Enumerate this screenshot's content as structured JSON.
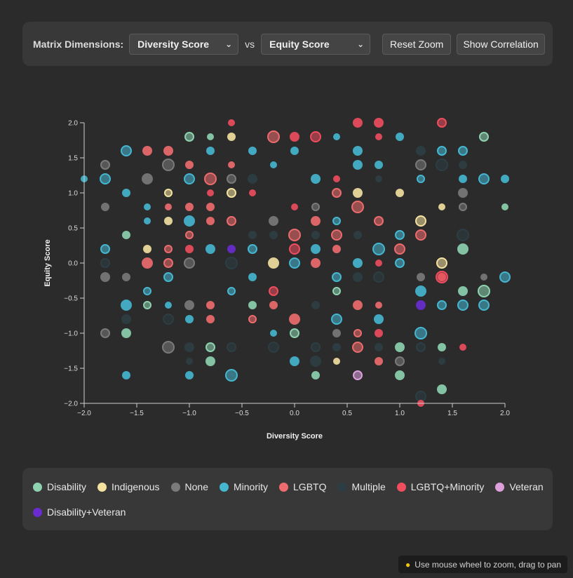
{
  "controls": {
    "label": "Matrix Dimensions:",
    "x_select": "Diversity Score",
    "vs": "vs",
    "y_select": "Equity Score",
    "reset_label": "Reset Zoom",
    "correlation_label": "Show Correlation"
  },
  "hint": {
    "icon": "bulb-icon",
    "text": "Use mouse wheel to zoom, drag to pan"
  },
  "legend": [
    {
      "label": "Disability",
      "color": "#8dd3b0"
    },
    {
      "label": "Indigenous",
      "color": "#f5e2a1"
    },
    {
      "label": "None",
      "color": "#7a7a7a"
    },
    {
      "label": "Minority",
      "color": "#45b7d1"
    },
    {
      "label": "LGBTQ",
      "color": "#ee6b6e"
    },
    {
      "label": "Multiple",
      "color": "#2c3e44"
    },
    {
      "label": "LGBTQ+Minority",
      "color": "#f04d5e"
    },
    {
      "label": "Veteran",
      "color": "#dda0dd"
    },
    {
      "label": "Disability+Veteran",
      "color": "#6a2bd0"
    }
  ],
  "chart_data": {
    "type": "scatter",
    "xlabel": "Diversity Score",
    "ylabel": "Equity Score",
    "xlim": [
      -2,
      2
    ],
    "ylim": [
      -2,
      2
    ],
    "xticks": [
      "−2.0",
      "−1.5",
      "−1.0",
      "−0.5",
      "0.0",
      "0.5",
      "1.0",
      "1.5",
      "2.0"
    ],
    "yticks": [
      "−2.0",
      "−1.5",
      "−1.0",
      "−0.5",
      "0.0",
      "0.5",
      "1.0",
      "1.5",
      "2.0"
    ],
    "series": [
      {
        "name": "Disability",
        "color": "#8dd3b0",
        "points": [
          [
            -1.0,
            1.8
          ],
          [
            -0.8,
            1.8
          ],
          [
            -1.6,
            0.4
          ],
          [
            -1.4,
            -0.6
          ],
          [
            -1.6,
            -1.0
          ],
          [
            -0.8,
            -1.2
          ],
          [
            -0.8,
            -1.4
          ],
          [
            0.2,
            -1.6
          ],
          [
            1.4,
            -1.8
          ],
          [
            1.0,
            -1.6
          ],
          [
            1.4,
            -1.2
          ],
          [
            1.8,
            -0.4
          ],
          [
            2.0,
            0.8
          ],
          [
            1.6,
            0.2
          ],
          [
            0.0,
            -1.0
          ],
          [
            1.6,
            -0.4
          ],
          [
            1.8,
            1.8
          ],
          [
            -0.4,
            -0.6
          ],
          [
            1.0,
            -1.2
          ],
          [
            0.4,
            -0.4
          ]
        ]
      },
      {
        "name": "Indigenous",
        "color": "#f5e2a1",
        "points": [
          [
            -0.6,
            1.8
          ],
          [
            -1.2,
            1.0
          ],
          [
            -0.6,
            1.0
          ],
          [
            1.0,
            1.0
          ],
          [
            0.6,
            1.0
          ],
          [
            1.2,
            0.6
          ],
          [
            1.4,
            0.8
          ],
          [
            -1.2,
            0.6
          ],
          [
            0.4,
            -1.4
          ],
          [
            1.4,
            0.0
          ],
          [
            -0.2,
            0.0
          ],
          [
            -1.4,
            0.2
          ]
        ]
      },
      {
        "name": "None",
        "color": "#7a7a7a",
        "points": [
          [
            -1.8,
            1.4
          ],
          [
            -1.8,
            0.8
          ],
          [
            -1.6,
            -0.2
          ],
          [
            -1.8,
            -0.2
          ],
          [
            -1.8,
            -1.0
          ],
          [
            -1.2,
            1.4
          ],
          [
            -1.2,
            -1.2
          ],
          [
            -1.0,
            0.0
          ],
          [
            -1.0,
            -0.6
          ],
          [
            0.4,
            -1.0
          ],
          [
            1.2,
            -0.2
          ],
          [
            1.2,
            1.4
          ],
          [
            1.0,
            -1.4
          ],
          [
            1.8,
            -0.2
          ],
          [
            1.6,
            1.0
          ],
          [
            1.6,
            0.8
          ],
          [
            -0.6,
            1.2
          ],
          [
            -0.2,
            0.6
          ],
          [
            0.2,
            0.8
          ],
          [
            -1.4,
            1.2
          ]
        ]
      },
      {
        "name": "Minority",
        "color": "#45b7d1",
        "points": [
          [
            -2.0,
            1.2
          ],
          [
            -1.8,
            1.2
          ],
          [
            -1.6,
            1.6
          ],
          [
            -1.8,
            0.2
          ],
          [
            -1.6,
            1.0
          ],
          [
            -1.4,
            0.8
          ],
          [
            -1.0,
            1.2
          ],
          [
            -1.0,
            0.6
          ],
          [
            -0.8,
            1.6
          ],
          [
            -0.4,
            1.6
          ],
          [
            -0.2,
            1.4
          ],
          [
            0.0,
            1.6
          ],
          [
            0.2,
            1.2
          ],
          [
            0.4,
            1.8
          ],
          [
            0.6,
            1.6
          ],
          [
            0.8,
            1.4
          ],
          [
            1.0,
            1.8
          ],
          [
            1.2,
            1.2
          ],
          [
            1.4,
            1.6
          ],
          [
            1.6,
            1.6
          ],
          [
            1.8,
            1.2
          ],
          [
            2.0,
            1.2
          ],
          [
            -1.4,
            -0.4
          ],
          [
            -1.2,
            -0.6
          ],
          [
            -1.0,
            -0.8
          ],
          [
            -0.6,
            -0.4
          ],
          [
            -0.4,
            -0.2
          ],
          [
            0.0,
            0.0
          ],
          [
            0.2,
            0.2
          ],
          [
            0.4,
            0.6
          ],
          [
            0.6,
            0.0
          ],
          [
            0.8,
            0.2
          ],
          [
            1.0,
            0.4
          ],
          [
            1.2,
            -0.4
          ],
          [
            1.4,
            -0.6
          ],
          [
            1.6,
            -0.6
          ],
          [
            1.8,
            -0.6
          ],
          [
            2.0,
            -0.2
          ],
          [
            -1.0,
            -1.6
          ],
          [
            -0.6,
            -1.6
          ],
          [
            0.0,
            -1.4
          ],
          [
            0.4,
            -0.8
          ],
          [
            0.8,
            -0.8
          ],
          [
            1.2,
            -1.0
          ],
          [
            -0.2,
            -1.0
          ],
          [
            -1.2,
            -0.2
          ],
          [
            -0.8,
            0.2
          ],
          [
            0.6,
            1.4
          ],
          [
            1.6,
            1.2
          ],
          [
            -1.6,
            -1.6
          ],
          [
            -1.6,
            -0.6
          ],
          [
            -1.4,
            0.6
          ],
          [
            -0.4,
            0.2
          ],
          [
            0.4,
            -0.2
          ],
          [
            1.0,
            0.0
          ]
        ]
      },
      {
        "name": "LGBTQ",
        "color": "#ee6b6e",
        "points": [
          [
            -1.4,
            1.6
          ],
          [
            -1.2,
            1.6
          ],
          [
            -1.0,
            1.4
          ],
          [
            -0.8,
            1.2
          ],
          [
            -0.6,
            1.4
          ],
          [
            -1.0,
            0.8
          ],
          [
            -0.8,
            0.8
          ],
          [
            -0.8,
            0.6
          ],
          [
            -1.2,
            0.2
          ],
          [
            -1.2,
            -0.0
          ],
          [
            -1.4,
            0.0
          ],
          [
            -0.8,
            -0.6
          ],
          [
            -0.8,
            -0.8
          ],
          [
            -0.4,
            -0.8
          ],
          [
            0.0,
            -0.8
          ],
          [
            0.2,
            0.0
          ],
          [
            0.4,
            0.2
          ],
          [
            0.2,
            0.6
          ],
          [
            0.4,
            1.0
          ],
          [
            0.6,
            0.8
          ],
          [
            0.8,
            0.6
          ],
          [
            0.6,
            -0.6
          ],
          [
            0.8,
            -0.6
          ],
          [
            0.6,
            -1.0
          ],
          [
            0.6,
            -1.2
          ],
          [
            0.8,
            -1.4
          ],
          [
            1.4,
            -0.2
          ],
          [
            -0.2,
            1.8
          ],
          [
            1.2,
            0.4
          ],
          [
            -0.6,
            0.6
          ],
          [
            -1.0,
            0.4
          ],
          [
            0.0,
            0.4
          ],
          [
            -0.2,
            -0.6
          ],
          [
            0.4,
            0.4
          ],
          [
            -1.2,
            0.8
          ],
          [
            1.0,
            0.2
          ]
        ]
      },
      {
        "name": "Multiple",
        "color": "#2c3e44",
        "points": [
          [
            -1.6,
            -0.8
          ],
          [
            -1.0,
            -1.2
          ],
          [
            -1.0,
            -1.4
          ],
          [
            -0.6,
            -1.2
          ],
          [
            -0.2,
            -1.2
          ],
          [
            0.2,
            -1.2
          ],
          [
            0.4,
            -1.2
          ],
          [
            0.2,
            -1.4
          ],
          [
            0.8,
            -1.2
          ],
          [
            1.4,
            -1.4
          ],
          [
            1.2,
            -1.2
          ],
          [
            1.2,
            -1.9
          ],
          [
            -0.4,
            1.2
          ],
          [
            -0.2,
            0.4
          ],
          [
            0.2,
            0.4
          ],
          [
            0.6,
            0.4
          ],
          [
            0.6,
            -0.2
          ],
          [
            0.8,
            -0.2
          ],
          [
            -0.4,
            0.4
          ],
          [
            1.2,
            -0.6
          ],
          [
            1.6,
            1.4
          ],
          [
            1.2,
            1.6
          ],
          [
            0.8,
            1.2
          ],
          [
            -1.8,
            0.0
          ],
          [
            1.6,
            0.4
          ],
          [
            0.2,
            -0.6
          ],
          [
            -0.6,
            0.0
          ],
          [
            1.4,
            1.4
          ],
          [
            -1.2,
            -0.8
          ]
        ]
      },
      {
        "name": "LGBTQ+Minority",
        "color": "#f04d5e",
        "points": [
          [
            -0.6,
            2.0
          ],
          [
            0.6,
            2.0
          ],
          [
            0.8,
            2.0
          ],
          [
            1.4,
            2.0
          ],
          [
            0.0,
            1.8
          ],
          [
            0.2,
            1.8
          ],
          [
            0.8,
            1.8
          ],
          [
            -0.8,
            1.0
          ],
          [
            0.4,
            1.2
          ],
          [
            -1.0,
            0.2
          ],
          [
            0.0,
            0.2
          ],
          [
            1.6,
            -1.2
          ],
          [
            1.2,
            -2.0
          ],
          [
            0.0,
            0.8
          ],
          [
            -0.4,
            1.0
          ],
          [
            0.8,
            0.0
          ],
          [
            -0.2,
            -0.4
          ],
          [
            0.8,
            -1.0
          ],
          [
            1.4,
            -0.2
          ]
        ]
      },
      {
        "name": "Veteran",
        "color": "#dda0dd",
        "points": [
          [
            0.6,
            -1.6
          ]
        ]
      },
      {
        "name": "Disability+Veteran",
        "color": "#6a2bd0",
        "points": [
          [
            -0.6,
            0.2
          ],
          [
            1.2,
            -0.6
          ]
        ]
      }
    ],
    "grid": false,
    "legend": "bottom"
  }
}
